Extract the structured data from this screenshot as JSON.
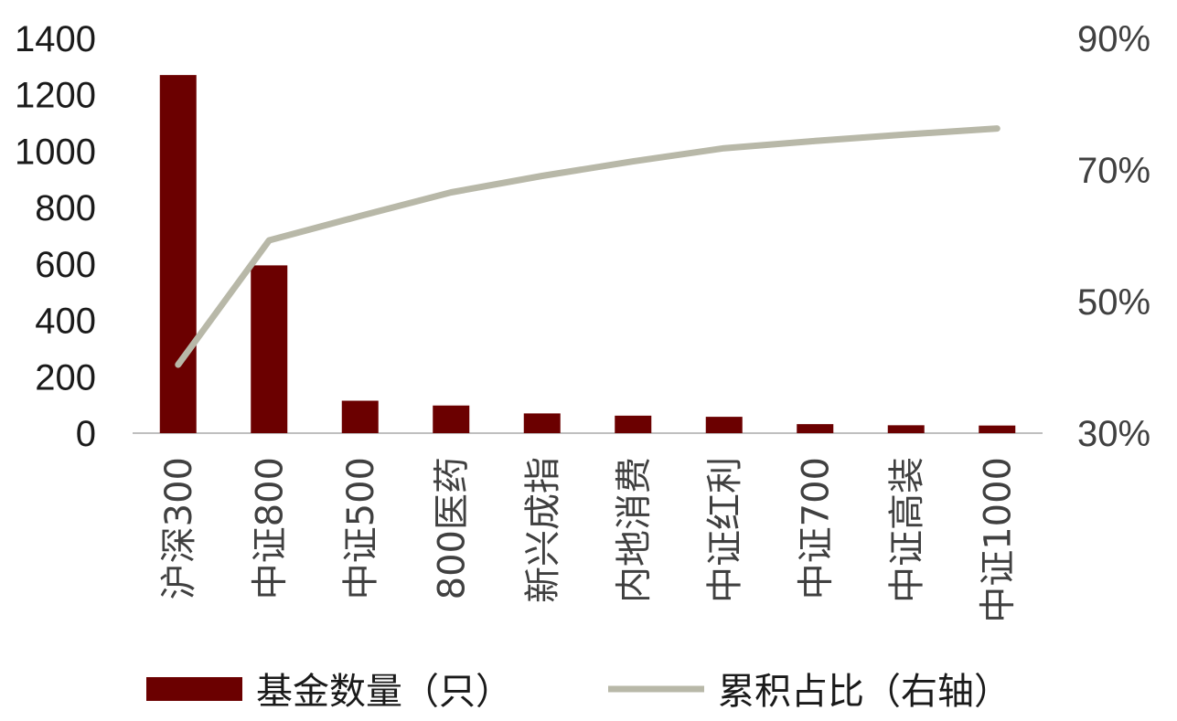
{
  "chart_data": {
    "type": "bar",
    "categories": [
      "沪深300",
      "中证800",
      "中证500",
      "800医药",
      "新兴成指",
      "内地消费",
      "中证红利",
      "中证700",
      "中证高装",
      "中证1000"
    ],
    "series": [
      {
        "name": "基金数量（只）",
        "type": "bar",
        "axis": "left",
        "color": "#6b0000",
        "values": [
          1270,
          595,
          115,
          98,
          70,
          62,
          58,
          32,
          28,
          27
        ]
      },
      {
        "name": "累积占比（右轴）",
        "type": "line",
        "axis": "right",
        "color": "#b8b8a8",
        "values": [
          0.404,
          0.593,
          0.63,
          0.666,
          0.691,
          0.713,
          0.733,
          0.744,
          0.754,
          0.763
        ]
      }
    ],
    "left_axis": {
      "min": 0,
      "max": 1400,
      "ticks": [
        "0",
        "200",
        "400",
        "600",
        "800",
        "1000",
        "1200",
        "1400"
      ]
    },
    "right_axis": {
      "min": 0.3,
      "max": 0.9,
      "ticks": [
        "30%",
        "50%",
        "70%",
        "90%"
      ]
    },
    "legend_position": "bottom",
    "grid": false
  },
  "colors": {
    "bar": "#6b0000",
    "line": "#b8b8a8",
    "axis": "#bfbfbf"
  }
}
